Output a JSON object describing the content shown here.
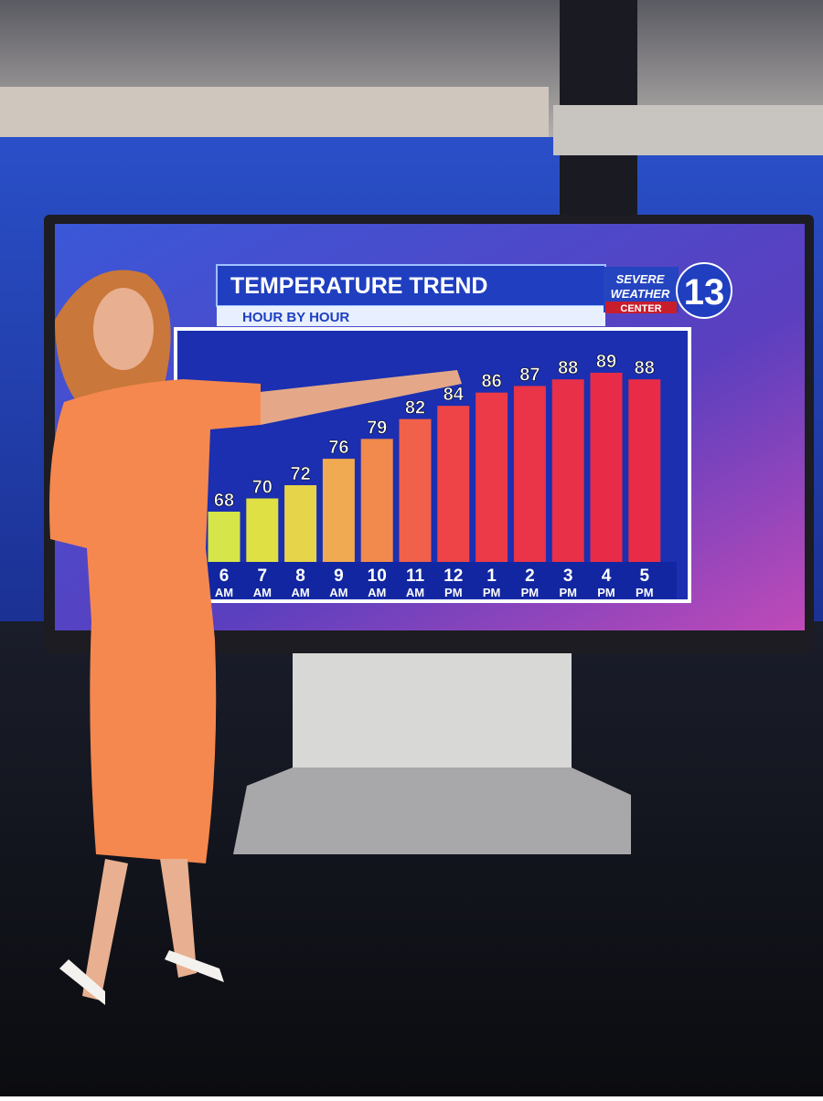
{
  "chart_data": {
    "type": "bar",
    "title": "TEMPERATURE TREND",
    "subtitle": "HOUR BY HOUR",
    "logo": {
      "line1": "SEVERE",
      "line2": "WEATHER",
      "line3": "CENTER",
      "channel": "13"
    },
    "categories": [
      "6 AM",
      "7 AM",
      "8 AM",
      "9 AM",
      "10 AM",
      "11 AM",
      "12 PM",
      "1 PM",
      "2 PM",
      "3 PM",
      "4 PM",
      "5 PM"
    ],
    "values": [
      68,
      70,
      72,
      76,
      79,
      82,
      84,
      86,
      87,
      88,
      89,
      88
    ],
    "colors": [
      "#d6e64a",
      "#dfe044",
      "#e6d44a",
      "#f0aa52",
      "#f18a4c",
      "#f0604a",
      "#ee4448",
      "#ec3a48",
      "#ea3448",
      "#e83048",
      "#e82c48",
      "#e82c48"
    ]
  }
}
